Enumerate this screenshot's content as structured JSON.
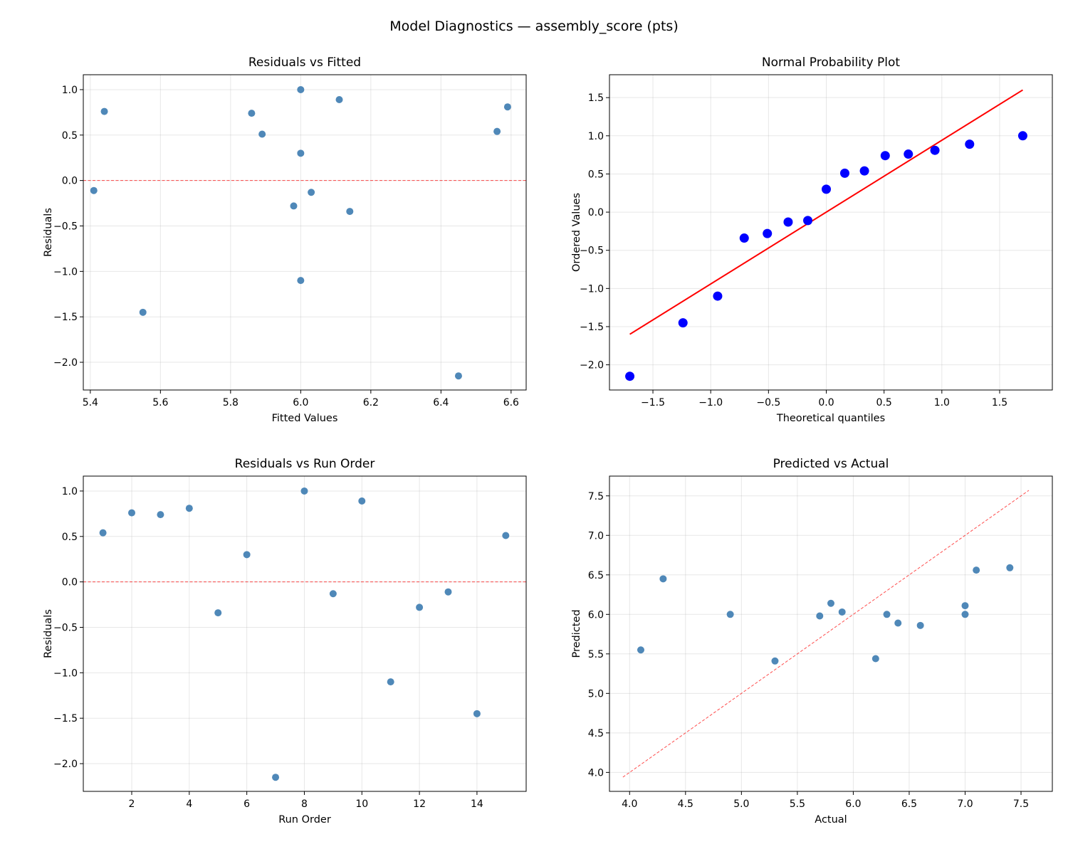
{
  "suptitle": "Model Diagnostics — assembly_score (pts)",
  "chart_data": [
    {
      "type": "scatter",
      "title": "Residuals vs Fitted",
      "xlabel": "Fitted Values",
      "ylabel": "Residuals",
      "xlim": [
        5.38,
        6.643
      ],
      "ylim": [
        -2.305,
        1.164
      ],
      "xticks": [
        5.4,
        5.6,
        5.8,
        6.0,
        6.2,
        6.4,
        6.6
      ],
      "xticklabels": [
        "5.4",
        "5.6",
        "5.8",
        "6.0",
        "6.2",
        "6.4",
        "6.6"
      ],
      "yticks": [
        -2.0,
        -1.5,
        -1.0,
        -0.5,
        0.0,
        0.5,
        1.0
      ],
      "yticklabels": [
        "−2.0",
        "−1.5",
        "−1.0",
        "−0.5",
        "0.0",
        "0.5",
        "1.0"
      ],
      "grid": true,
      "point_color": "#4682b4",
      "x": [
        6.56,
        5.44,
        5.86,
        6.59,
        6.14,
        6.0,
        6.45,
        6.0,
        6.03,
        6.11,
        6.0,
        5.98,
        5.41,
        5.55,
        5.89
      ],
      "y": [
        0.54,
        0.76,
        0.74,
        0.81,
        -0.34,
        0.3,
        -2.15,
        1.0,
        -0.13,
        0.89,
        -1.1,
        -0.28,
        -0.11,
        -1.45,
        0.51
      ],
      "reference_line": {
        "type": "horizontal",
        "y": 0,
        "color": "#ff0000",
        "style": "dashed"
      }
    },
    {
      "type": "scatter",
      "title": "Normal Probability Plot",
      "xlabel": "Theoretical quantiles",
      "ylabel": "Ordered Values",
      "xlim": [
        -1.876,
        1.956
      ],
      "ylim": [
        -2.33,
        1.8
      ],
      "xticks": [
        -1.5,
        -1.0,
        -0.5,
        0.0,
        0.5,
        1.0,
        1.5
      ],
      "xticklabels": [
        "−1.5",
        "−1.0",
        "−0.5",
        "0.0",
        "0.5",
        "1.0",
        "1.5"
      ],
      "yticks": [
        -2.0,
        -1.5,
        -1.0,
        -0.5,
        0.0,
        0.5,
        1.0,
        1.5
      ],
      "yticklabels": [
        "−2.0",
        "−1.5",
        "−1.0",
        "−0.5",
        "0.0",
        "0.5",
        "1.0",
        "1.5"
      ],
      "grid": true,
      "point_color": "#0000ff",
      "x": [
        -1.7,
        -1.24,
        -0.94,
        -0.71,
        -0.51,
        -0.33,
        -0.16,
        0.0,
        0.16,
        0.33,
        0.51,
        0.71,
        0.94,
        1.24,
        1.7
      ],
      "y": [
        -2.15,
        -1.45,
        -1.1,
        -0.34,
        -0.28,
        -0.13,
        -0.11,
        0.3,
        0.51,
        0.54,
        0.74,
        0.76,
        0.81,
        0.89,
        1.0
      ],
      "reference_line": {
        "type": "fit",
        "x": [
          -1.7,
          1.7
        ],
        "y": [
          -1.6,
          1.6
        ],
        "color": "#ff0000",
        "style": "solid"
      }
    },
    {
      "type": "scatter",
      "title": "Residuals vs Run Order",
      "xlabel": "Run Order",
      "ylabel": "Residuals",
      "xlim": [
        0.317,
        15.71
      ],
      "ylim": [
        -2.305,
        1.164
      ],
      "xticks": [
        2,
        4,
        6,
        8,
        10,
        12,
        14
      ],
      "xticklabels": [
        "2",
        "4",
        "6",
        "8",
        "10",
        "12",
        "14"
      ],
      "yticks": [
        -2.0,
        -1.5,
        -1.0,
        -0.5,
        0.0,
        0.5,
        1.0
      ],
      "yticklabels": [
        "−2.0",
        "−1.5",
        "−1.0",
        "−0.5",
        "0.0",
        "0.5",
        "1.0"
      ],
      "grid": true,
      "point_color": "#4682b4",
      "x": [
        1,
        2,
        3,
        4,
        5,
        6,
        7,
        8,
        9,
        10,
        11,
        12,
        13,
        14,
        15
      ],
      "y": [
        0.54,
        0.76,
        0.74,
        0.81,
        -0.34,
        0.3,
        -2.15,
        1.0,
        -0.13,
        0.89,
        -1.1,
        -0.28,
        -0.11,
        -1.45,
        0.51
      ],
      "reference_line": {
        "type": "horizontal",
        "y": 0,
        "color": "#ff0000",
        "style": "dashed"
      }
    },
    {
      "type": "scatter",
      "title": "Predicted vs Actual",
      "xlabel": "Actual",
      "ylabel": "Predicted",
      "xlim": [
        3.82,
        7.78
      ],
      "ylim": [
        3.76,
        7.75
      ],
      "xticks": [
        4.0,
        4.5,
        5.0,
        5.5,
        6.0,
        6.5,
        7.0,
        7.5
      ],
      "xticklabels": [
        "4.0",
        "4.5",
        "5.0",
        "5.5",
        "6.0",
        "6.5",
        "7.0",
        "7.5"
      ],
      "yticks": [
        4.0,
        4.5,
        5.0,
        5.5,
        6.0,
        6.5,
        7.0,
        7.5
      ],
      "yticklabels": [
        "4.0",
        "4.5",
        "5.0",
        "5.5",
        "6.0",
        "6.5",
        "7.0",
        "7.5"
      ],
      "grid": true,
      "point_color": "#4682b4",
      "x": [
        7.1,
        6.2,
        6.6,
        7.4,
        5.8,
        6.3,
        4.3,
        7.0,
        5.9,
        7.0,
        4.9,
        5.7,
        5.3,
        4.1,
        6.4
      ],
      "y": [
        6.56,
        5.44,
        5.86,
        6.59,
        6.14,
        6.0,
        6.45,
        6.0,
        6.03,
        6.11,
        6.0,
        5.98,
        5.41,
        5.55,
        5.89
      ],
      "reference_line": {
        "type": "identity",
        "x": [
          3.94,
          7.57
        ],
        "y": [
          3.94,
          7.57
        ],
        "color": "#ff0000",
        "style": "dashed"
      }
    }
  ]
}
